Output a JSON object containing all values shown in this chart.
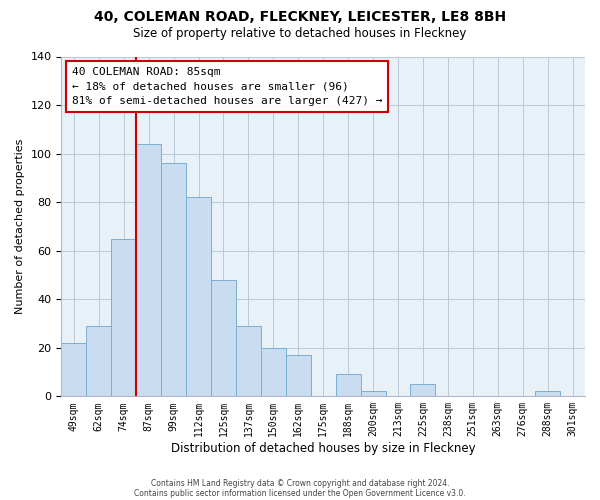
{
  "title": "40, COLEMAN ROAD, FLECKNEY, LEICESTER, LE8 8BH",
  "subtitle": "Size of property relative to detached houses in Fleckney",
  "xlabel": "Distribution of detached houses by size in Fleckney",
  "ylabel": "Number of detached properties",
  "bar_labels": [
    "49sqm",
    "62sqm",
    "74sqm",
    "87sqm",
    "99sqm",
    "112sqm",
    "125sqm",
    "137sqm",
    "150sqm",
    "162sqm",
    "175sqm",
    "188sqm",
    "200sqm",
    "213sqm",
    "225sqm",
    "238sqm",
    "251sqm",
    "263sqm",
    "276sqm",
    "288sqm",
    "301sqm"
  ],
  "bar_values": [
    22,
    29,
    65,
    104,
    96,
    82,
    48,
    29,
    20,
    17,
    0,
    9,
    2,
    0,
    5,
    0,
    0,
    0,
    0,
    2,
    0
  ],
  "bar_color": "#c9dcf0",
  "bar_edge_color": "#7bafd4",
  "vline_color": "#cc0000",
  "annotation_text": "40 COLEMAN ROAD: 85sqm\n← 18% of detached houses are smaller (96)\n81% of semi-detached houses are larger (427) →",
  "annotation_box_edgecolor": "#cc0000",
  "plot_bg_color": "#e8f0f8",
  "ylim": [
    0,
    140
  ],
  "yticks": [
    0,
    20,
    40,
    60,
    80,
    100,
    120,
    140
  ],
  "footer_line1": "Contains HM Land Registry data © Crown copyright and database right 2024.",
  "footer_line2": "Contains public sector information licensed under the Open Government Licence v3.0.",
  "background_color": "#ffffff"
}
